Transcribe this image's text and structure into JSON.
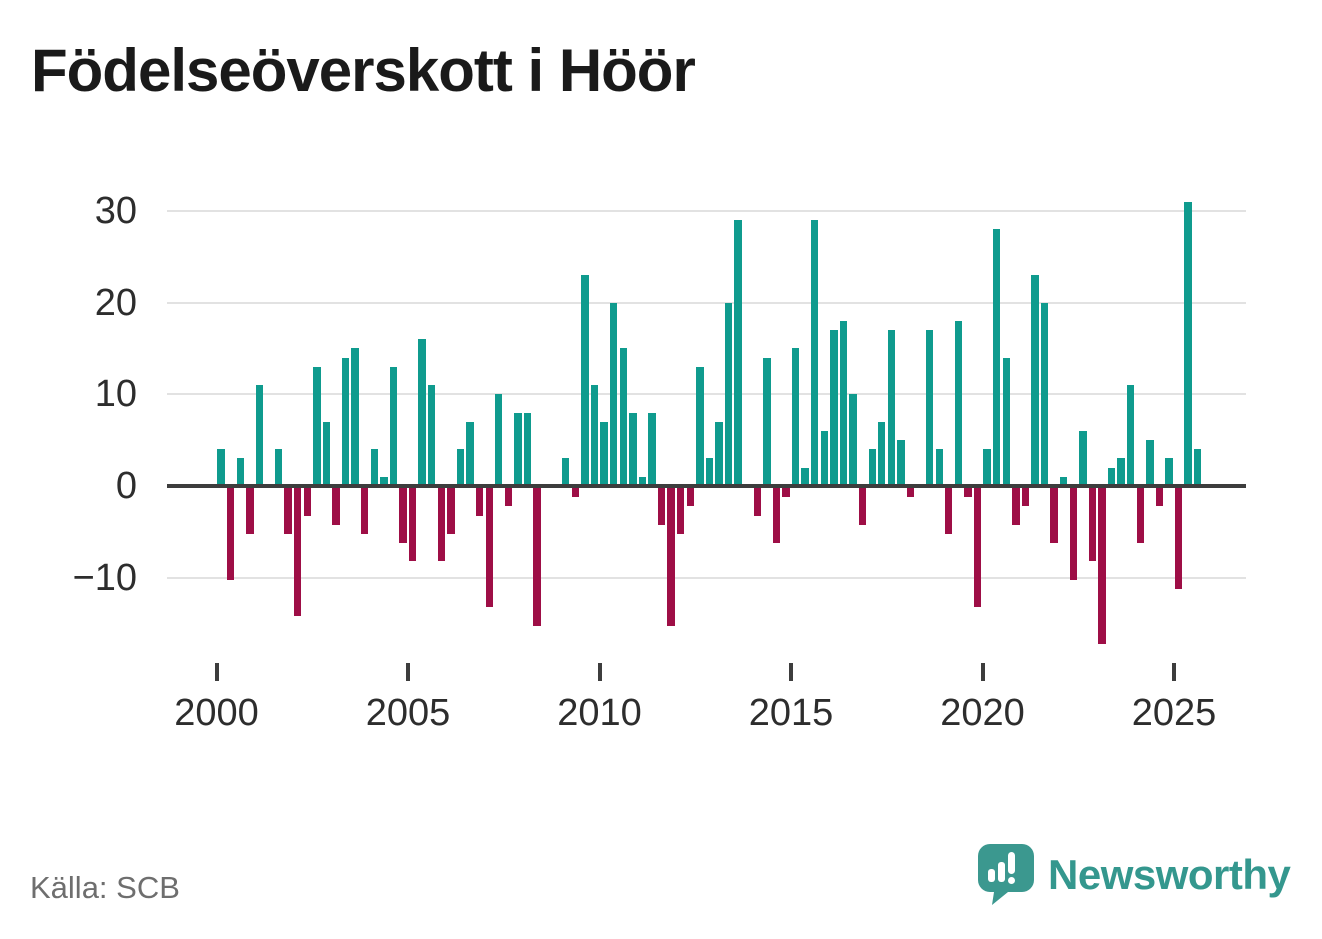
{
  "title": "Födelseöverskott i Höör",
  "source": "Källa: SCB",
  "branding": {
    "logo_text": "Newsworthy",
    "logo_icon": "speech-bubble-bar-chart-exclamation",
    "logo_color": "#3b988f"
  },
  "colors": {
    "positive_bar": "#0f9b8e",
    "negative_bar": "#9e0e46",
    "zero_line": "#3d3d3d",
    "gridline": "#e2e2e2",
    "axis_text": "#2d2d2d",
    "title_text": "#1a1a1a",
    "source_text": "#6e6e6e"
  },
  "chart_data": {
    "type": "bar",
    "title": "Födelseöverskott i Höör",
    "xlabel": "",
    "ylabel": "",
    "frequency": "quarterly",
    "start": "2000-Q1",
    "end": "2025-Q3",
    "ylim": [
      -18,
      32
    ],
    "grid": "horizontal",
    "legend": "none",
    "yticks": [
      {
        "value": 30,
        "label": "30"
      },
      {
        "value": 20,
        "label": "20"
      },
      {
        "value": 10,
        "label": "10"
      },
      {
        "value": 0,
        "label": "0"
      },
      {
        "value": -10,
        "label": "−10"
      }
    ],
    "xticks": [
      {
        "value": 2000,
        "label": "2000"
      },
      {
        "value": 2005,
        "label": "2005"
      },
      {
        "value": 2010,
        "label": "2010"
      },
      {
        "value": 2015,
        "label": "2015"
      },
      {
        "value": 2020,
        "label": "2020"
      },
      {
        "value": 2025,
        "label": "2025"
      }
    ],
    "series": [
      {
        "year": 2000,
        "quarters": [
          4,
          -10,
          3,
          -5
        ]
      },
      {
        "year": 2001,
        "quarters": [
          11,
          0,
          4,
          -5
        ]
      },
      {
        "year": 2002,
        "quarters": [
          -14,
          -3,
          13,
          7
        ]
      },
      {
        "year": 2003,
        "quarters": [
          -4,
          14,
          15,
          -5
        ]
      },
      {
        "year": 2004,
        "quarters": [
          4,
          1,
          13,
          -6
        ]
      },
      {
        "year": 2005,
        "quarters": [
          -8,
          16,
          11,
          -8
        ]
      },
      {
        "year": 2006,
        "quarters": [
          -5,
          4,
          7,
          -3
        ]
      },
      {
        "year": 2007,
        "quarters": [
          -13,
          10,
          -2,
          8
        ]
      },
      {
        "year": 2008,
        "quarters": [
          8,
          -15,
          0,
          0
        ]
      },
      {
        "year": 2009,
        "quarters": [
          3,
          -1,
          23,
          11
        ]
      },
      {
        "year": 2010,
        "quarters": [
          7,
          20,
          15,
          8
        ]
      },
      {
        "year": 2011,
        "quarters": [
          1,
          8,
          -4,
          -15
        ]
      },
      {
        "year": 2012,
        "quarters": [
          -5,
          -2,
          13,
          3
        ]
      },
      {
        "year": 2013,
        "quarters": [
          7,
          20,
          29,
          0
        ]
      },
      {
        "year": 2014,
        "quarters": [
          -3,
          14,
          -6,
          -1
        ]
      },
      {
        "year": 2015,
        "quarters": [
          15,
          2,
          29,
          6
        ]
      },
      {
        "year": 2016,
        "quarters": [
          17,
          18,
          10,
          -4
        ]
      },
      {
        "year": 2017,
        "quarters": [
          4,
          7,
          17,
          5
        ]
      },
      {
        "year": 2018,
        "quarters": [
          -1,
          0,
          17,
          4
        ]
      },
      {
        "year": 2019,
        "quarters": [
          -5,
          18,
          -1,
          -13
        ]
      },
      {
        "year": 2020,
        "quarters": [
          4,
          28,
          14,
          -4
        ]
      },
      {
        "year": 2021,
        "quarters": [
          -2,
          23,
          20,
          -6
        ]
      },
      {
        "year": 2022,
        "quarters": [
          1,
          -10,
          6,
          -8
        ]
      },
      {
        "year": 2023,
        "quarters": [
          -17,
          2,
          3,
          11
        ]
      },
      {
        "year": 2024,
        "quarters": [
          -6,
          5,
          -2,
          3
        ]
      },
      {
        "year": 2025,
        "quarters": [
          -11,
          31,
          4
        ]
      }
    ]
  }
}
